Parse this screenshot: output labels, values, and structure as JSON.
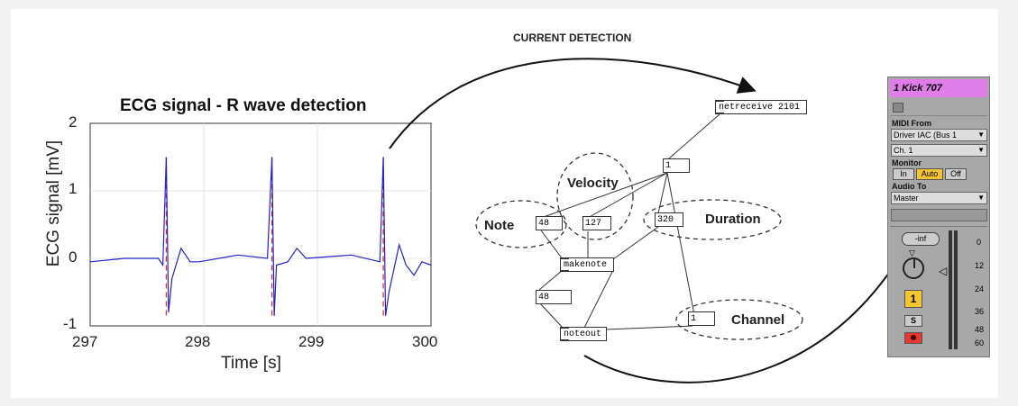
{
  "ecg_chart": {
    "title": "ECG signal - R wave detection",
    "xlabel": "Time [s]",
    "ylabel": "ECG signal [mV]",
    "xticks": [
      "297",
      "298",
      "299",
      "300"
    ],
    "yticks": [
      "2",
      "1",
      "0",
      "-1"
    ]
  },
  "chart_data": {
    "type": "line",
    "title": "ECG signal - R wave detection",
    "xlabel": "Time [s]",
    "ylabel": "ECG signal [mV]",
    "xlim": [
      297,
      300
    ],
    "ylim": [
      -1,
      2
    ],
    "grid": true,
    "series": [
      {
        "color": "#2222cc",
        "x": [
          297.0,
          297.3,
          297.6,
          297.64,
          297.67,
          297.69,
          297.72,
          297.8,
          297.88,
          297.96,
          298.3,
          298.56,
          298.6,
          298.62,
          298.64,
          298.74,
          298.82,
          298.9,
          299.3,
          299.55,
          299.58,
          299.6,
          299.63,
          299.72,
          299.78,
          299.85,
          299.92,
          300.0
        ],
        "y": [
          -0.05,
          0.0,
          0.0,
          -0.1,
          1.5,
          -0.8,
          -0.3,
          0.15,
          -0.05,
          -0.05,
          0.05,
          0.0,
          1.5,
          -0.85,
          -0.1,
          -0.05,
          0.15,
          0.0,
          0.05,
          -0.05,
          1.5,
          -0.85,
          -0.5,
          0.2,
          -0.1,
          -0.25,
          -0.05,
          -0.1
        ]
      }
    ],
    "r_peaks_x": [
      297.67,
      298.6,
      299.58
    ],
    "r_peak_line_color": "#e03030"
  },
  "arrow_label": "CURRENT DETECTION",
  "max_patch": {
    "netreceive": "netreceive 2101",
    "num_top": "1",
    "num_note": "48",
    "num_velocity": "127",
    "num_duration": "320",
    "makenote": "makenote",
    "num_out": "48",
    "noteout": "noteout",
    "num_channel": "1",
    "label_velocity": "Velocity",
    "label_note": "Note",
    "label_duration": "Duration",
    "label_channel": "Channel"
  },
  "live_track": {
    "name": "1 Kick 707",
    "midi_from_label": "MIDI From",
    "midi_from_value": "Driver IAC (Bus 1",
    "channel_value": "Ch. 1",
    "monitor_label": "Monitor",
    "monitor_in": "In",
    "monitor_auto": "Auto",
    "monitor_off": "Off",
    "audio_to_label": "Audio To",
    "audio_to_value": "Master",
    "volume_value": "-inf",
    "track_number": "1",
    "solo": "S",
    "meter_ticks": [
      "0",
      "12",
      "24",
      "36",
      "48",
      "60"
    ],
    "title_color": "#e07de8",
    "auto_color": "#f6c431",
    "arm_color": "#e53935"
  }
}
